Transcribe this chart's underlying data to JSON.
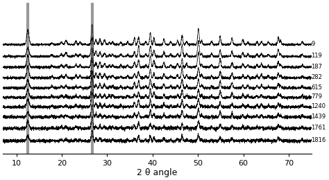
{
  "xlabel": "2 θ angle",
  "xlim": [
    7,
    75
  ],
  "xticks": [
    10,
    20,
    30,
    40,
    50,
    60,
    70
  ],
  "background_color": "#ffffff",
  "sample_labels": [
    "9",
    "119",
    "187",
    "282",
    "615",
    "779",
    "1240",
    "1439",
    "1761",
    "1816"
  ],
  "label_fontsize": 6,
  "offsets": [
    9.0,
    8.0,
    7.1,
    6.2,
    5.35,
    4.55,
    3.75,
    2.9,
    1.95,
    0.9
  ],
  "gray_lines": [
    {
      "x": 12.5,
      "color": "#999999",
      "lw": 3.0
    },
    {
      "x": 26.65,
      "color": "#999999",
      "lw": 3.0
    }
  ],
  "trace_color": "#000000",
  "trace_lw": 0.5,
  "xlabel_fontsize": 9,
  "tick_fontsize": 8
}
